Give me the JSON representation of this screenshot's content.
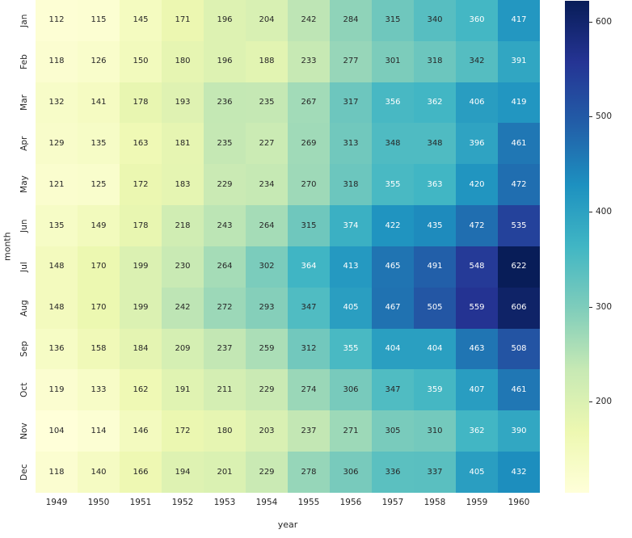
{
  "chart_data": {
    "type": "heatmap",
    "title": "",
    "xlabel": "year",
    "ylabel": "month",
    "columns": [
      "1949",
      "1950",
      "1951",
      "1952",
      "1953",
      "1954",
      "1955",
      "1956",
      "1957",
      "1958",
      "1959",
      "1960"
    ],
    "rows": [
      "Jan",
      "Feb",
      "Mar",
      "Apr",
      "May",
      "Jun",
      "Jul",
      "Aug",
      "Sep",
      "Oct",
      "Nov",
      "Dec"
    ],
    "values": [
      [
        112,
        115,
        145,
        171,
        196,
        204,
        242,
        284,
        315,
        340,
        360,
        417
      ],
      [
        118,
        126,
        150,
        180,
        196,
        188,
        233,
        277,
        301,
        318,
        342,
        391
      ],
      [
        132,
        141,
        178,
        193,
        236,
        235,
        267,
        317,
        356,
        362,
        406,
        419
      ],
      [
        129,
        135,
        163,
        181,
        235,
        227,
        269,
        313,
        348,
        348,
        396,
        461
      ],
      [
        121,
        125,
        172,
        183,
        229,
        234,
        270,
        318,
        355,
        363,
        420,
        472
      ],
      [
        135,
        149,
        178,
        218,
        243,
        264,
        315,
        374,
        422,
        435,
        472,
        535
      ],
      [
        148,
        170,
        199,
        230,
        264,
        302,
        364,
        413,
        465,
        491,
        548,
        622
      ],
      [
        148,
        170,
        199,
        242,
        272,
        293,
        347,
        405,
        467,
        505,
        559,
        606
      ],
      [
        136,
        158,
        184,
        209,
        237,
        259,
        312,
        355,
        404,
        404,
        463,
        508
      ],
      [
        119,
        133,
        162,
        191,
        211,
        229,
        274,
        306,
        347,
        359,
        407,
        461
      ],
      [
        104,
        114,
        146,
        172,
        180,
        203,
        237,
        271,
        305,
        310,
        362,
        390
      ],
      [
        118,
        140,
        166,
        194,
        201,
        229,
        278,
        306,
        336,
        337,
        405,
        432
      ]
    ],
    "vmin": 104,
    "vmax": 622,
    "colormap": {
      "name": "YlGnBu",
      "anchors": [
        "#ffffd9",
        "#edf8b1",
        "#c7e9b4",
        "#7fcdbb",
        "#41b6c4",
        "#1d91c0",
        "#225ea8",
        "#253494",
        "#081d58"
      ]
    },
    "colorbar_ticks": [
      200,
      300,
      400,
      500,
      600
    ],
    "annotation_text_colors": {
      "dark": "#262626",
      "light": "#ffffff"
    },
    "legend_position": "right",
    "grid": false
  }
}
